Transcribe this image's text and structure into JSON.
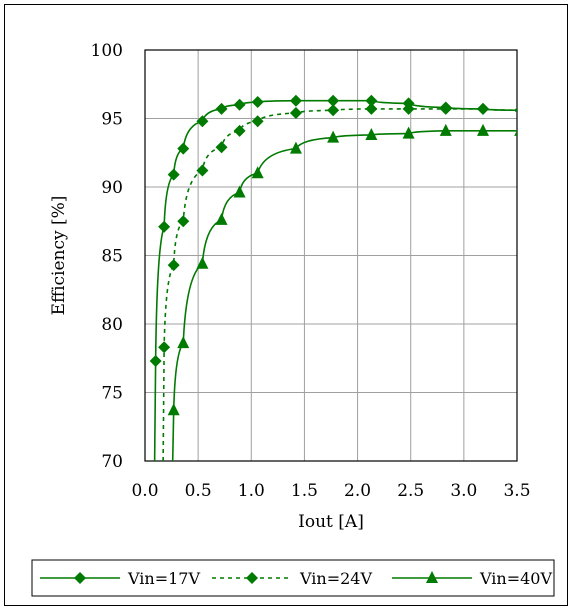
{
  "chart_data": {
    "type": "line",
    "title": "",
    "xlabel": "Iout [A]",
    "ylabel": "Efficiency [%]",
    "xlim": [
      0.0,
      3.5
    ],
    "ylim": [
      70,
      100
    ],
    "xticks": [
      "0.0",
      "0.5",
      "1.0",
      "1.5",
      "2.0",
      "2.5",
      "3.0",
      "3.5"
    ],
    "yticks": [
      "70",
      "75",
      "80",
      "85",
      "90",
      "95",
      "100"
    ],
    "grid": true,
    "legend_position": "bottom",
    "series": [
      {
        "name": "Vin=17V",
        "line": "solid",
        "marker": "diamond",
        "color": "#007a00",
        "x": [
          0.1,
          0.18,
          0.27,
          0.36,
          0.54,
          0.72,
          0.89,
          1.06,
          1.42,
          1.77,
          2.13,
          2.48,
          2.83,
          3.18,
          3.53
        ],
        "y": [
          77.3,
          87.1,
          90.9,
          92.8,
          94.8,
          95.7,
          96.0,
          96.2,
          96.3,
          96.3,
          96.3,
          96.1,
          95.8,
          95.7,
          95.6
        ]
      },
      {
        "name": "Vin=24V",
        "line": "dashed",
        "marker": "diamond",
        "color": "#007a00",
        "x": [
          0.18,
          0.27,
          0.36,
          0.54,
          0.72,
          0.89,
          1.06,
          1.42,
          1.77,
          2.13,
          2.48,
          2.83,
          3.18,
          3.53
        ],
        "y": [
          78.3,
          84.3,
          87.5,
          91.2,
          92.9,
          94.1,
          94.8,
          95.4,
          95.6,
          95.7,
          95.7,
          95.7,
          95.7,
          95.6
        ]
      },
      {
        "name": "Vin=40V",
        "line": "solid",
        "marker": "triangle",
        "color": "#007a00",
        "x": [
          0.27,
          0.36,
          0.54,
          0.72,
          0.89,
          1.06,
          1.42,
          1.77,
          2.13,
          2.48,
          2.83,
          3.18,
          3.53
        ],
        "y": [
          73.7,
          78.6,
          84.4,
          87.6,
          89.6,
          91.0,
          92.8,
          93.6,
          93.8,
          93.9,
          94.1,
          94.1,
          94.1
        ]
      }
    ]
  }
}
